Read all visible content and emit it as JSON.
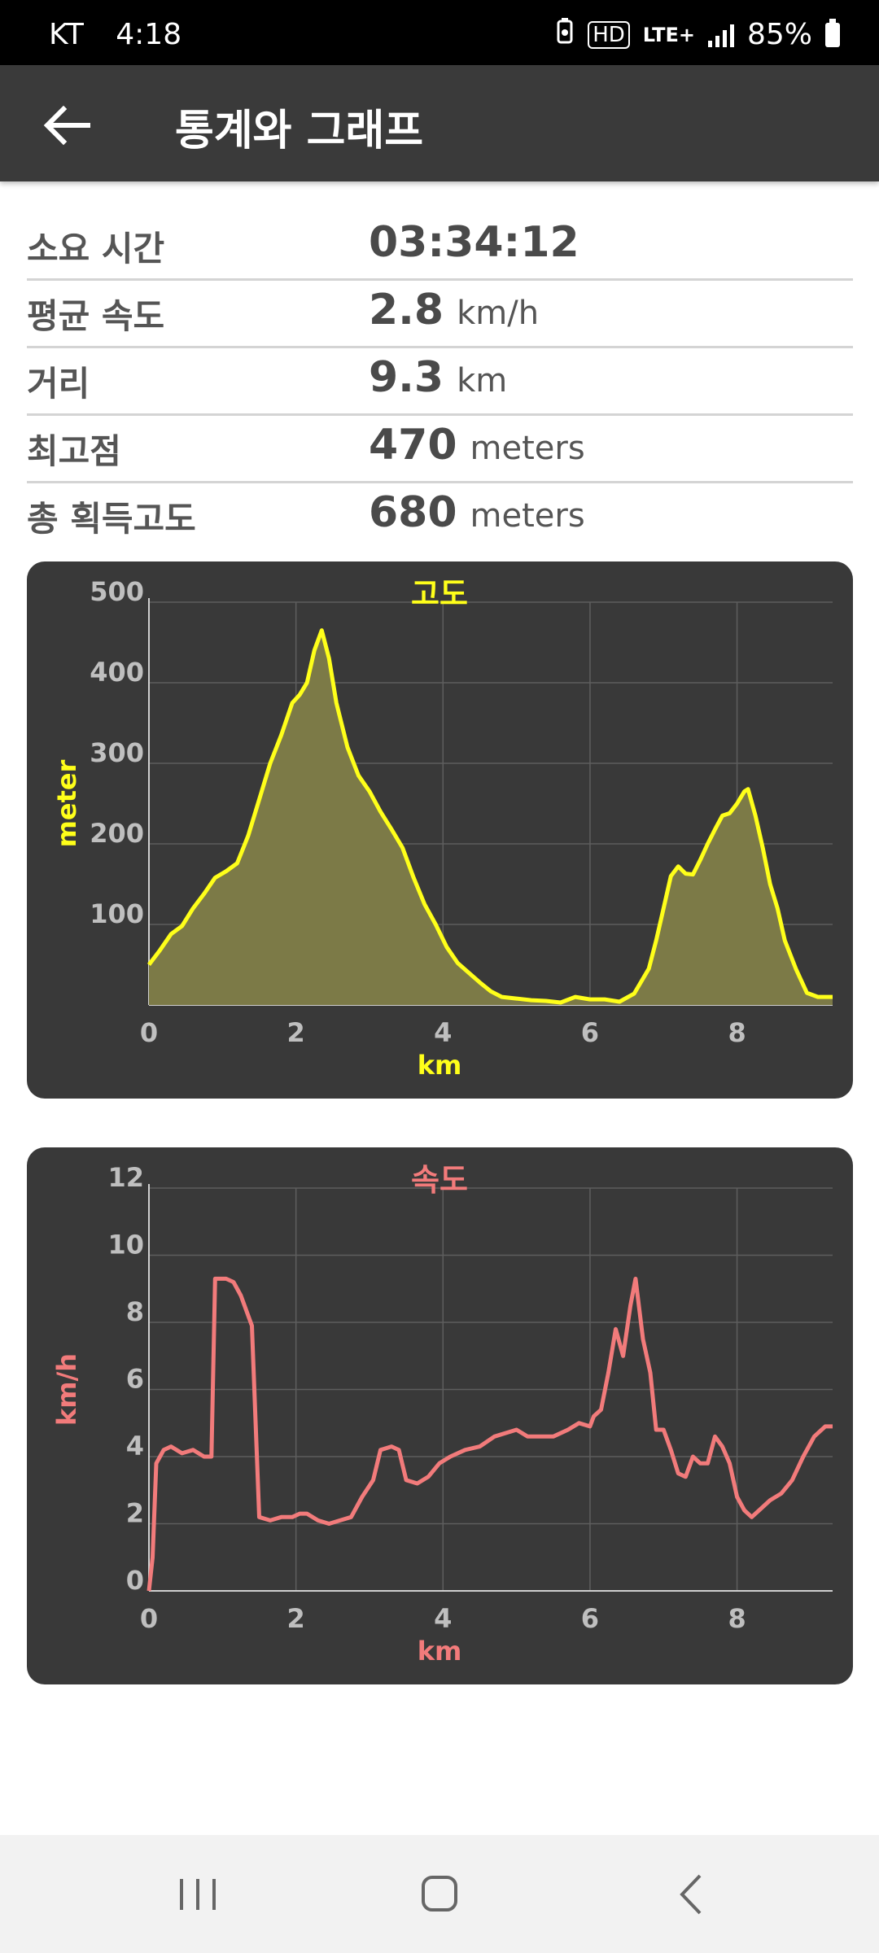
{
  "status_bar": {
    "carrier": "KT",
    "time": "4:18",
    "icons": [
      "battery-saver-icon",
      "hd-voice-icon",
      "lte-plus-icon",
      "signal-icon"
    ],
    "hd_label": "HD",
    "lte_label": "LTE+",
    "battery": "85%"
  },
  "app_bar": {
    "title": "통계와 그래프",
    "back_icon": "arrow-left-icon"
  },
  "stats": [
    {
      "label": "소요 시간",
      "value": "03:34:12",
      "unit": ""
    },
    {
      "label": "평균 속도",
      "value": "2.8",
      "unit": "km/h"
    },
    {
      "label": "거리",
      "value": "9.3",
      "unit": "km"
    },
    {
      "label": "최고점",
      "value": "470",
      "unit": "meters"
    },
    {
      "label": "총 획득고도",
      "value": "680",
      "unit": "meters"
    }
  ],
  "chart_data": [
    {
      "type": "area",
      "title": "고도",
      "xlabel": "km",
      "ylabel": "meter",
      "color": "#ffff1a",
      "fill": "#7c7a47",
      "xlim": [
        0,
        9.3
      ],
      "ylim": [
        0,
        500
      ],
      "xticks": [
        "0",
        "2",
        "4",
        "6",
        "8"
      ],
      "yticks": [
        "100",
        "200",
        "300",
        "400",
        "500"
      ],
      "grid": true,
      "points": [
        [
          0,
          50
        ],
        [
          0.15,
          68
        ],
        [
          0.3,
          88
        ],
        [
          0.45,
          98
        ],
        [
          0.6,
          120
        ],
        [
          0.75,
          138
        ],
        [
          0.9,
          158
        ],
        [
          1.05,
          166
        ],
        [
          1.2,
          176
        ],
        [
          1.35,
          210
        ],
        [
          1.5,
          255
        ],
        [
          1.65,
          300
        ],
        [
          1.8,
          335
        ],
        [
          1.95,
          375
        ],
        [
          2.05,
          385
        ],
        [
          2.15,
          400
        ],
        [
          2.25,
          440
        ],
        [
          2.35,
          465
        ],
        [
          2.45,
          430
        ],
        [
          2.55,
          375
        ],
        [
          2.7,
          320
        ],
        [
          2.85,
          285
        ],
        [
          3.0,
          265
        ],
        [
          3.15,
          240
        ],
        [
          3.3,
          218
        ],
        [
          3.45,
          195
        ],
        [
          3.6,
          158
        ],
        [
          3.75,
          125
        ],
        [
          3.9,
          100
        ],
        [
          4.05,
          72
        ],
        [
          4.2,
          52
        ],
        [
          4.35,
          40
        ],
        [
          4.5,
          28
        ],
        [
          4.65,
          17
        ],
        [
          4.8,
          10
        ],
        [
          5.0,
          8
        ],
        [
          5.2,
          6
        ],
        [
          5.4,
          5
        ],
        [
          5.6,
          3
        ],
        [
          5.8,
          10
        ],
        [
          6.0,
          7
        ],
        [
          6.2,
          7
        ],
        [
          6.4,
          4
        ],
        [
          6.6,
          14
        ],
        [
          6.8,
          45
        ],
        [
          6.9,
          80
        ],
        [
          7.0,
          120
        ],
        [
          7.1,
          160
        ],
        [
          7.2,
          172
        ],
        [
          7.3,
          163
        ],
        [
          7.4,
          162
        ],
        [
          7.5,
          180
        ],
        [
          7.6,
          200
        ],
        [
          7.7,
          218
        ],
        [
          7.8,
          235
        ],
        [
          7.9,
          238
        ],
        [
          8.0,
          250
        ],
        [
          8.1,
          265
        ],
        [
          8.15,
          268
        ],
        [
          8.25,
          235
        ],
        [
          8.35,
          195
        ],
        [
          8.45,
          150
        ],
        [
          8.55,
          120
        ],
        [
          8.65,
          80
        ],
        [
          8.8,
          45
        ],
        [
          8.95,
          15
        ],
        [
          9.1,
          10
        ],
        [
          9.3,
          10
        ]
      ]
    },
    {
      "type": "line",
      "title": "속도",
      "xlabel": "km",
      "ylabel": "km/h",
      "color": "#f27b7b",
      "xlim": [
        0,
        9.3
      ],
      "ylim": [
        0,
        12
      ],
      "xticks": [
        "0",
        "2",
        "4",
        "6",
        "8"
      ],
      "yticks": [
        "0",
        "2",
        "4",
        "6",
        "8",
        "10",
        "12"
      ],
      "grid": true,
      "points": [
        [
          0,
          0
        ],
        [
          0.05,
          1
        ],
        [
          0.1,
          3.8
        ],
        [
          0.2,
          4.2
        ],
        [
          0.3,
          4.3
        ],
        [
          0.45,
          4.1
        ],
        [
          0.6,
          4.2
        ],
        [
          0.75,
          4.0
        ],
        [
          0.85,
          4.0
        ],
        [
          0.9,
          9.3
        ],
        [
          1.05,
          9.3
        ],
        [
          1.15,
          9.2
        ],
        [
          1.25,
          8.8
        ],
        [
          1.4,
          7.9
        ],
        [
          1.5,
          2.2
        ],
        [
          1.65,
          2.1
        ],
        [
          1.8,
          2.2
        ],
        [
          1.95,
          2.2
        ],
        [
          2.05,
          2.3
        ],
        [
          2.15,
          2.3
        ],
        [
          2.3,
          2.1
        ],
        [
          2.45,
          2.0
        ],
        [
          2.6,
          2.1
        ],
        [
          2.75,
          2.2
        ],
        [
          2.9,
          2.8
        ],
        [
          3.05,
          3.3
        ],
        [
          3.15,
          4.2
        ],
        [
          3.3,
          4.3
        ],
        [
          3.4,
          4.2
        ],
        [
          3.5,
          3.3
        ],
        [
          3.65,
          3.2
        ],
        [
          3.8,
          3.4
        ],
        [
          3.95,
          3.8
        ],
        [
          4.1,
          4.0
        ],
        [
          4.3,
          4.2
        ],
        [
          4.5,
          4.3
        ],
        [
          4.7,
          4.6
        ],
        [
          4.85,
          4.7
        ],
        [
          5.0,
          4.8
        ],
        [
          5.15,
          4.6
        ],
        [
          5.3,
          4.6
        ],
        [
          5.5,
          4.6
        ],
        [
          5.7,
          4.8
        ],
        [
          5.85,
          5.0
        ],
        [
          6.0,
          4.9
        ],
        [
          6.05,
          5.2
        ],
        [
          6.15,
          5.4
        ],
        [
          6.25,
          6.5
        ],
        [
          6.35,
          7.8
        ],
        [
          6.45,
          7.0
        ],
        [
          6.55,
          8.5
        ],
        [
          6.62,
          9.3
        ],
        [
          6.72,
          7.5
        ],
        [
          6.82,
          6.5
        ],
        [
          6.9,
          4.8
        ],
        [
          7.0,
          4.8
        ],
        [
          7.1,
          4.2
        ],
        [
          7.2,
          3.5
        ],
        [
          7.3,
          3.4
        ],
        [
          7.4,
          4.0
        ],
        [
          7.5,
          3.8
        ],
        [
          7.6,
          3.8
        ],
        [
          7.7,
          4.6
        ],
        [
          7.8,
          4.3
        ],
        [
          7.9,
          3.8
        ],
        [
          8.0,
          2.8
        ],
        [
          8.1,
          2.4
        ],
        [
          8.2,
          2.2
        ],
        [
          8.3,
          2.4
        ],
        [
          8.45,
          2.7
        ],
        [
          8.6,
          2.9
        ],
        [
          8.75,
          3.3
        ],
        [
          8.9,
          4.0
        ],
        [
          9.05,
          4.6
        ],
        [
          9.2,
          4.9
        ],
        [
          9.3,
          4.9
        ]
      ]
    }
  ],
  "nav_bar": {
    "buttons": [
      "recent-apps-icon",
      "home-icon",
      "back-icon"
    ]
  }
}
